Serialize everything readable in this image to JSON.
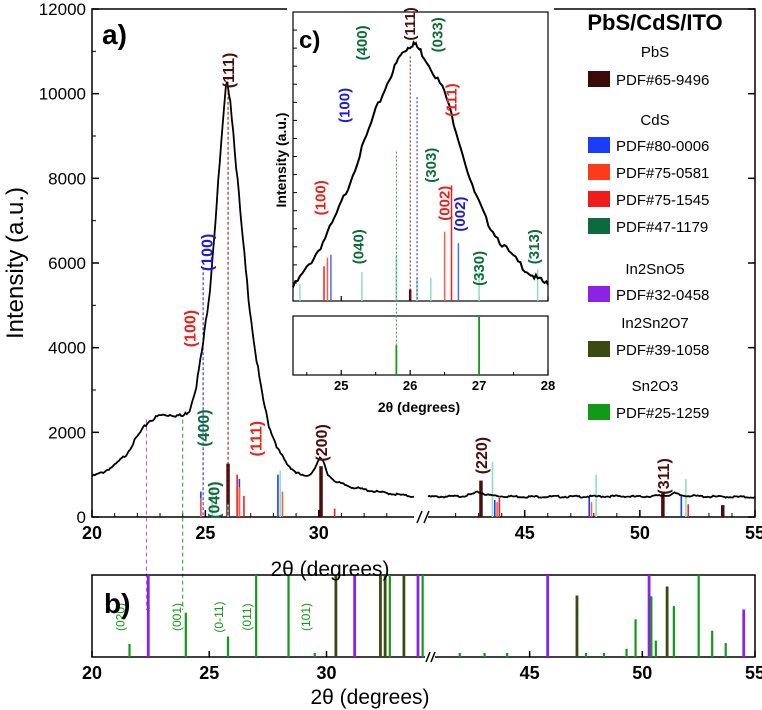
{
  "chart_data": [
    {
      "panel": "a)",
      "type": "line",
      "ylabel": "Intensity (a.u.)",
      "xlabel": "2θ (degrees)",
      "ylim": [
        0,
        12000
      ],
      "yticks": [
        "0",
        "2000",
        "4000",
        "6000",
        "8000",
        "10000",
        "12000"
      ],
      "xticks": [
        "20",
        "25",
        "30",
        "45",
        "50",
        "55"
      ],
      "broken_x_axis": true,
      "x_ranges": [
        [
          20,
          34.2
        ],
        [
          40.8,
          55
        ]
      ],
      "curve": [
        [
          20,
          960
        ],
        [
          20.5,
          1060
        ],
        [
          21,
          1220
        ],
        [
          21.5,
          1470
        ],
        [
          22,
          1900
        ],
        [
          22.5,
          2260
        ],
        [
          23,
          2400
        ],
        [
          23.5,
          2420
        ],
        [
          24,
          2380
        ],
        [
          24.3,
          2520
        ],
        [
          24.6,
          3100
        ],
        [
          24.9,
          4100
        ],
        [
          25.2,
          5400
        ],
        [
          25.5,
          7400
        ],
        [
          25.7,
          8800
        ],
        [
          25.9,
          10050
        ],
        [
          26.0,
          10250
        ],
        [
          26.1,
          9900
        ],
        [
          26.3,
          8700
        ],
        [
          26.6,
          6800
        ],
        [
          26.9,
          5200
        ],
        [
          27.2,
          3900
        ],
        [
          27.5,
          2900
        ],
        [
          27.8,
          2150
        ],
        [
          28.2,
          1600
        ],
        [
          28.6,
          1250
        ],
        [
          29,
          1050
        ],
        [
          29.4,
          950
        ],
        [
          29.7,
          1050
        ],
        [
          29.9,
          1250
        ],
        [
          30.05,
          1380
        ],
        [
          30.2,
          1300
        ],
        [
          30.4,
          1000
        ],
        [
          30.8,
          820
        ],
        [
          31.5,
          700
        ],
        [
          32.5,
          600
        ],
        [
          33.5,
          530
        ],
        [
          34.2,
          480
        ],
        [
          40.8,
          480
        ],
        [
          41.5,
          480
        ],
        [
          42.2,
          490
        ],
        [
          42.6,
          520
        ],
        [
          43,
          590
        ],
        [
          43.4,
          520
        ],
        [
          44,
          490
        ],
        [
          45,
          480
        ],
        [
          47,
          480
        ],
        [
          49,
          490
        ],
        [
          50,
          480
        ],
        [
          51.2,
          510
        ],
        [
          51.5,
          560
        ],
        [
          51.8,
          510
        ],
        [
          53,
          480
        ],
        [
          55,
          470
        ]
      ],
      "reference_lines": {
        "PbS": [
          [
            26.0,
            1260
          ],
          [
            30.1,
            1200
          ],
          [
            43.1,
            860
          ],
          [
            51.0,
            560
          ],
          [
            53.6,
            280
          ]
        ],
        "CdS_80_0006": [
          [
            24.8,
            600
          ],
          [
            26.5,
            900
          ],
          [
            28.2,
            1000
          ],
          [
            43.7,
            400
          ],
          [
            47.8,
            500
          ],
          [
            51.8,
            500
          ]
        ],
        "CdS_75_0581": [
          [
            24.8,
            450
          ],
          [
            26.5,
            700
          ],
          [
            28.4,
            600
          ],
          [
            43.8,
            350
          ],
          [
            47.9,
            350
          ]
        ],
        "CdS_75_1545": [
          [
            26.4,
            1000
          ],
          [
            26.7,
            500
          ],
          [
            30.7,
            200
          ],
          [
            43.9,
            450
          ],
          [
            52.1,
            300
          ]
        ],
        "CdS_47_1179": [
          [
            25.3,
            700
          ],
          [
            26.0,
            300
          ],
          [
            28.3,
            1100
          ],
          [
            43.6,
            1300
          ],
          [
            48.1,
            1000
          ],
          [
            52.0,
            900
          ]
        ]
      },
      "labels": [
        {
          "text": "(111)",
          "x": 26.0,
          "y": 10550,
          "color": "#4a0d0d"
        },
        {
          "text": "(100)",
          "x": 25.05,
          "y": 6250,
          "color": "#1c1cd8"
        },
        {
          "text": "(100)",
          "x": 24.3,
          "y": 4450,
          "color": "#e8201a"
        },
        {
          "text": "(400)",
          "x": 24.9,
          "y": 2100,
          "color": "#0b6b3a"
        },
        {
          "text": "(040)",
          "x": 25.35,
          "y": 400,
          "color": "#0b6b3a"
        },
        {
          "text": "(111)",
          "x": 27.2,
          "y": 1850,
          "color": "#e8201a"
        },
        {
          "text": "(200)",
          "x": 30.1,
          "y": 1750,
          "color": "#4a0d0d"
        },
        {
          "text": "(220)",
          "x": 43.1,
          "y": 1450,
          "color": "#4a0d0d"
        },
        {
          "text": "(311)",
          "x": 51.0,
          "y": 960,
          "color": "#4a0d0d"
        }
      ],
      "title": "PbS/CdS/ITO"
    },
    {
      "panel": "b)",
      "type": "bar",
      "xlabel": "2θ (degrees)",
      "xticks": [
        "20",
        "25",
        "30",
        "45",
        "50",
        "55"
      ],
      "broken_x_axis": true,
      "In2SnO5": [
        [
          22.4,
          1.0
        ],
        [
          31.2,
          1.0
        ],
        [
          33.9,
          1.0
        ],
        [
          45.8,
          1.0
        ],
        [
          50.3,
          1.0
        ],
        [
          54.5,
          0.58
        ]
      ],
      "In2Sn2O7": [
        [
          30.4,
          1.0
        ],
        [
          32.3,
          1.0
        ],
        [
          32.5,
          1.0
        ],
        [
          33.3,
          1.0
        ],
        [
          47.1,
          0.75
        ],
        [
          51.1,
          0.86
        ]
      ],
      "Sn2O3": [
        [
          21.6,
          0.16
        ],
        [
          24.0,
          0.54
        ],
        [
          25.8,
          0.25
        ],
        [
          27.0,
          1.0
        ],
        [
          29.5,
          0.05
        ],
        [
          32.7,
          1.0
        ],
        [
          34.1,
          1.0
        ],
        [
          34.3,
          1.0
        ],
        [
          41.9,
          0.05
        ],
        [
          43.0,
          0.05
        ],
        [
          44.0,
          0.05
        ],
        [
          47.5,
          0.05
        ],
        [
          48.3,
          0.05
        ],
        [
          49.3,
          0.1
        ],
        [
          49.7,
          0.46
        ],
        [
          50.4,
          0.74
        ],
        [
          50.6,
          0.2
        ],
        [
          51.4,
          0.62
        ],
        [
          52.5,
          1.0
        ],
        [
          53.1,
          0.32
        ],
        [
          53.7,
          0.17
        ]
      ],
      "labels": [
        {
          "text": "(020)",
          "x": 21.6
        },
        {
          "text": "(001)",
          "x": 24.0
        },
        {
          "text": "(0-11)",
          "x": 25.8
        },
        {
          "text": "(011)",
          "x": 27.0
        },
        {
          "text": "(101)",
          "x": 29.5
        }
      ]
    },
    {
      "panel": "c)",
      "type": "line",
      "ylabel": "Intensity (a.u.)",
      "xlabel": "2θ (degrees)",
      "xlim": [
        24.3,
        28
      ],
      "xticks": [
        "25",
        "26",
        "27",
        "28"
      ],
      "curve": [
        [
          24.3,
          0.05
        ],
        [
          24.5,
          0.12
        ],
        [
          24.7,
          0.2
        ],
        [
          24.9,
          0.3
        ],
        [
          25.1,
          0.42
        ],
        [
          25.3,
          0.56
        ],
        [
          25.5,
          0.7
        ],
        [
          25.7,
          0.82
        ],
        [
          25.85,
          0.9
        ],
        [
          25.95,
          0.93
        ],
        [
          26.05,
          0.95
        ],
        [
          26.15,
          0.92
        ],
        [
          26.3,
          0.86
        ],
        [
          26.5,
          0.77
        ],
        [
          26.7,
          0.6
        ],
        [
          26.9,
          0.42
        ],
        [
          27.1,
          0.3
        ],
        [
          27.3,
          0.22
        ],
        [
          27.5,
          0.16
        ],
        [
          27.7,
          0.11
        ],
        [
          27.85,
          0.08
        ],
        [
          28,
          0.06
        ]
      ],
      "reference_lines": {
        "PbS": [
          [
            26.0,
            0.04
          ]
        ],
        "CdS_80_0006": [
          [
            24.85,
            0.16
          ],
          [
            26.7,
            0.2
          ]
        ],
        "CdS_75_0581": [
          [
            24.8,
            0.15
          ],
          [
            26.5,
            0.24
          ]
        ],
        "CdS_75_1545": [
          [
            24.75,
            0.12
          ],
          [
            26.6,
            0.4
          ]
        ],
        "CdS_47_1179": [
          [
            24.4,
            0.06
          ],
          [
            25.3,
            0.1
          ],
          [
            25.8,
            0.16
          ],
          [
            26.1,
            0.08
          ],
          [
            26.3,
            0.08
          ],
          [
            27.0,
            0.1
          ],
          [
            27.85,
            0.11
          ]
        ],
        "Sn2O3": [
          [
            25.8,
            0.5
          ],
          [
            27.0,
            1.0
          ]
        ]
      },
      "labels": [
        {
          "text": "(111)",
          "x": 26.0,
          "y": 1.02,
          "color": "#4a0d0d"
        },
        {
          "text": "(033)",
          "x": 26.4,
          "y": 0.98,
          "color": "#0b6b3a"
        },
        {
          "text": "(400)",
          "x": 25.3,
          "y": 0.95,
          "color": "#0b6b3a"
        },
        {
          "text": "(100)",
          "x": 25.05,
          "y": 0.72,
          "color": "#1c1cd8"
        },
        {
          "text": "(111)",
          "x": 26.6,
          "y": 0.74,
          "color": "#e8201a"
        },
        {
          "text": "(303)",
          "x": 26.3,
          "y": 0.5,
          "color": "#0b6b3a"
        },
        {
          "text": "(100)",
          "x": 24.7,
          "y": 0.38,
          "color": "#e8201a"
        },
        {
          "text": "(040)",
          "x": 25.25,
          "y": 0.2,
          "color": "#0b6b3a"
        },
        {
          "text": "(002)",
          "x": 26.5,
          "y": 0.36,
          "color": "#e8201a"
        },
        {
          "text": "(002)",
          "x": 26.72,
          "y": 0.32,
          "color": "#1c1cd8"
        },
        {
          "text": "(330)",
          "x": 27.0,
          "y": 0.12,
          "color": "#0b6b3a"
        },
        {
          "text": "(313)",
          "x": 27.8,
          "y": 0.2,
          "color": "#0b6b3a"
        }
      ]
    }
  ],
  "legend": {
    "title": "PbS/CdS/ITO",
    "groups": [
      {
        "name": "PbS",
        "items": [
          {
            "label": "PDF#65-9496",
            "color": "#3a0a0a"
          }
        ]
      },
      {
        "name": "CdS",
        "items": [
          {
            "label": "PDF#80-0006",
            "color": "#1a3cff"
          },
          {
            "label": "PDF#75-0581",
            "color": "#ff3b1c"
          },
          {
            "label": "PDF#75-1545",
            "color": "#f01c1c"
          },
          {
            "label": "PDF#47-1179",
            "color": "#0c6a3c"
          }
        ]
      },
      {
        "name": "In2SnO5",
        "items": [
          {
            "label": "PDF#32-0458",
            "color": "#8b22e6"
          }
        ]
      },
      {
        "name": "In2Sn2O7",
        "items": [
          {
            "label": "PDF#39-1058",
            "color": "#3a4a10"
          }
        ]
      },
      {
        "name": "Sn2O3",
        "items": [
          {
            "label": "PDF#25-1259",
            "color": "#119a15"
          }
        ]
      }
    ]
  },
  "colors": {
    "PbS": "#4a0d0d",
    "CdS_80_0006": "#1a3cff",
    "CdS_75_0581": "#ff5a3c",
    "CdS_75_1545": "#f02020",
    "CdS_47_1179": "#0c6a3c",
    "CdS_47_1179_light": "#8fe0c0",
    "In2SnO5": "#8b22e6",
    "In2Sn2O7": "#3a4a10",
    "Sn2O3": "#119a15"
  }
}
